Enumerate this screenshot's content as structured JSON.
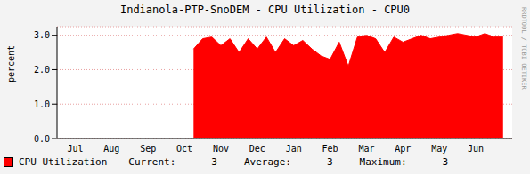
{
  "chart_data": {
    "type": "area",
    "title": "Indianola-PTP-SnoDEM - CPU Utilization - CPU0",
    "y_label": "percent",
    "categories": [
      null,
      null,
      "Jul",
      null,
      null,
      null,
      "Aug",
      null,
      null,
      null,
      "Sep",
      null,
      null,
      null,
      "Oct",
      null,
      null,
      null,
      "Nov",
      null,
      null,
      null,
      "Dec",
      null,
      null,
      null,
      "Jan",
      null,
      null,
      null,
      "Feb",
      null,
      null,
      null,
      "Mar",
      null,
      null,
      null,
      "Apr",
      null,
      null,
      null,
      "May",
      null,
      null,
      null,
      "Jun",
      null,
      null,
      null,
      null
    ],
    "series": [
      {
        "name": "CPU Utilization",
        "color": "#ff0000",
        "values": [
          null,
          null,
          null,
          null,
          null,
          null,
          null,
          null,
          null,
          null,
          null,
          null,
          null,
          null,
          null,
          2.6,
          2.9,
          2.95,
          2.7,
          2.9,
          2.5,
          2.9,
          2.6,
          2.95,
          2.5,
          2.9,
          2.7,
          2.85,
          2.6,
          2.4,
          2.3,
          2.8,
          2.1,
          2.95,
          3.0,
          2.9,
          2.5,
          2.95,
          2.8,
          2.9,
          3.0,
          2.9,
          2.95,
          3.0,
          3.05,
          3.0,
          2.95,
          3.05,
          2.95,
          2.95,
          null
        ]
      }
    ],
    "ylim": [
      0,
      3.25
    ],
    "yticks": [
      {
        "value": 0,
        "label": "0.0"
      },
      {
        "value": 1,
        "label": "1.0"
      },
      {
        "value": 2,
        "label": "2.0"
      },
      {
        "value": 3,
        "label": "3.0"
      }
    ],
    "grid": true,
    "stats": [
      {
        "label": "Current:",
        "value": 3
      },
      {
        "label": "Average:",
        "value": 3
      },
      {
        "label": "Maximum:",
        "value": 3
      }
    ],
    "annotations": [
      "RRDTOOL / TOBI OETIKER"
    ]
  }
}
